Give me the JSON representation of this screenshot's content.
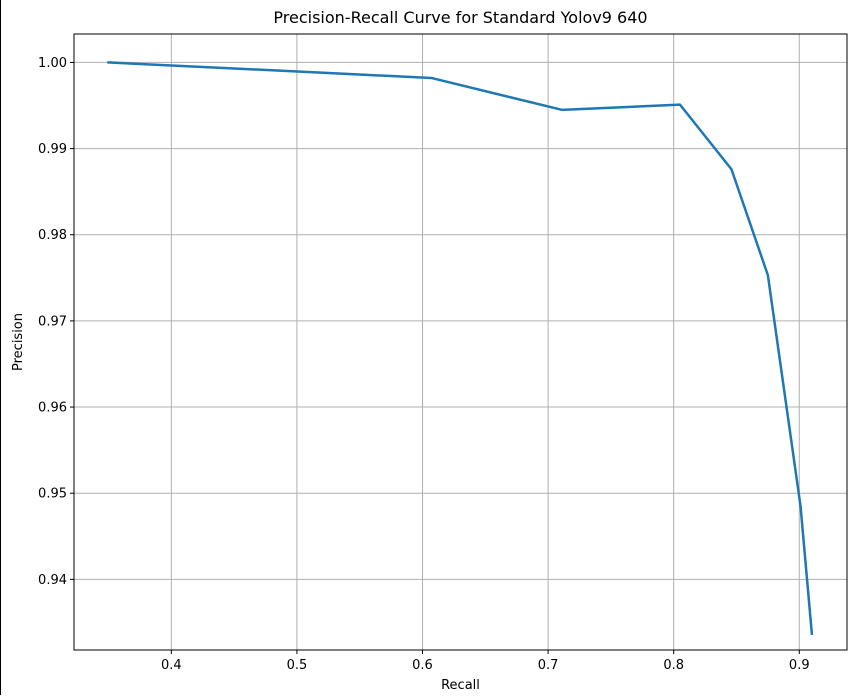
{
  "chart_data": {
    "type": "line",
    "title": "Precision-Recall Curve for Standard Yolov9 640",
    "xlabel": "Recall",
    "ylabel": "Precision",
    "xlim": [
      0.3225,
      0.938
    ],
    "ylim": [
      0.9318,
      1.0033
    ],
    "xticks": [
      0.4,
      0.5,
      0.6,
      0.7,
      0.8,
      0.9
    ],
    "xtick_labels": [
      "0.4",
      "0.5",
      "0.6",
      "0.7",
      "0.8",
      "0.9"
    ],
    "yticks": [
      0.94,
      0.95,
      0.96,
      0.97,
      0.98,
      0.99,
      1.0
    ],
    "ytick_labels": [
      "0.94",
      "0.95",
      "0.96",
      "0.97",
      "0.98",
      "0.99",
      "1.00"
    ],
    "grid": true,
    "series": [
      {
        "color": "#1f77b4",
        "x": [
          0.35,
          0.607,
          0.711,
          0.805,
          0.846,
          0.875,
          0.901,
          0.91
        ],
        "y": [
          1.0,
          0.9982,
          0.9945,
          0.9951,
          0.9876,
          0.9753,
          0.9485,
          0.9337
        ]
      }
    ]
  }
}
